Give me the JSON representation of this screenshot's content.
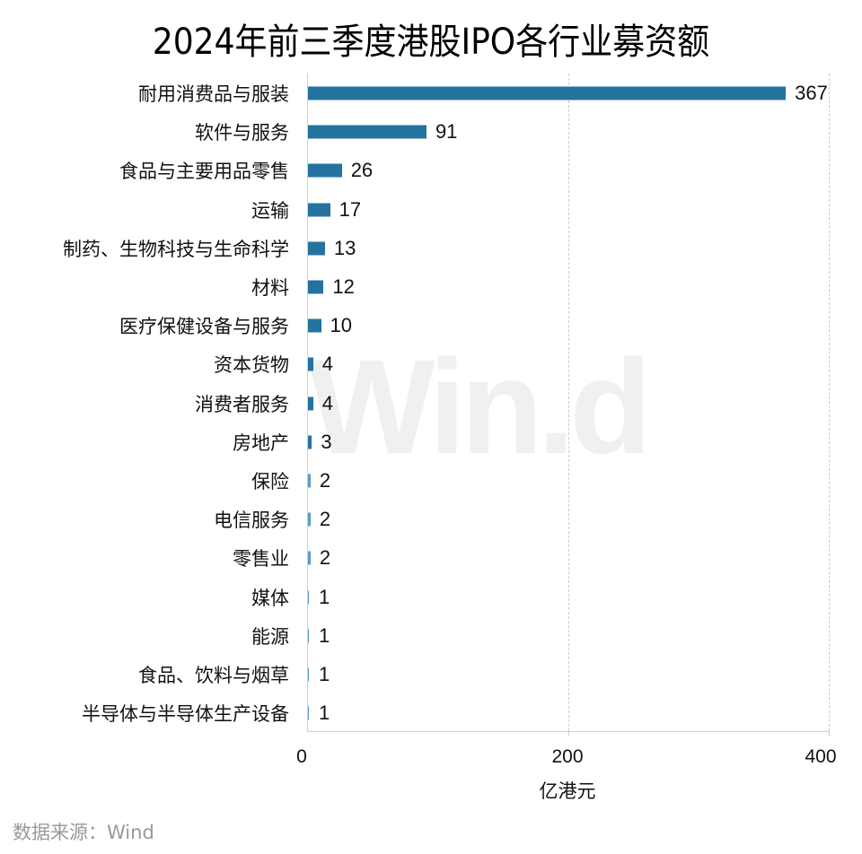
{
  "title": "2024年前三季度港股IPO各行业募资额",
  "watermark": "Win.d",
  "source": "数据来源：Wind",
  "colors": {
    "bar": "#24739f",
    "bar_light": "#5a9cc4",
    "grid": "#cccccc",
    "axis": "#cfcfcf"
  },
  "chart_data": {
    "type": "bar",
    "orientation": "horizontal",
    "title": "2024年前三季度港股IPO各行业募资额",
    "xlabel": "亿港元",
    "ylabel": "",
    "xlim": [
      0,
      400
    ],
    "xticks": [
      "0",
      "200",
      "400"
    ],
    "grid": "vertical dashed at 200 and 400",
    "legend": "none",
    "categories": [
      "耐用消费品与服装",
      "软件与服务",
      "食品与主要用品零售",
      "运输",
      "制药、生物科技与生命科学",
      "材料",
      "医疗保健设备与服务",
      "资本货物",
      "消费者服务",
      "房地产",
      "保险",
      "电信服务",
      "零售业",
      "媒体",
      "能源",
      "食品、饮料与烟草",
      "半导体与半导体生产设备"
    ],
    "values": [
      367,
      91,
      26,
      17,
      13,
      12,
      10,
      4,
      4,
      3,
      2,
      2,
      2,
      1,
      1,
      1,
      1
    ],
    "value_labels": [
      "367",
      "91",
      "26",
      "17",
      "13",
      "12",
      "10",
      "4",
      "4",
      "3",
      "2",
      "2",
      "2",
      "1",
      "1",
      "1",
      "1"
    ]
  }
}
